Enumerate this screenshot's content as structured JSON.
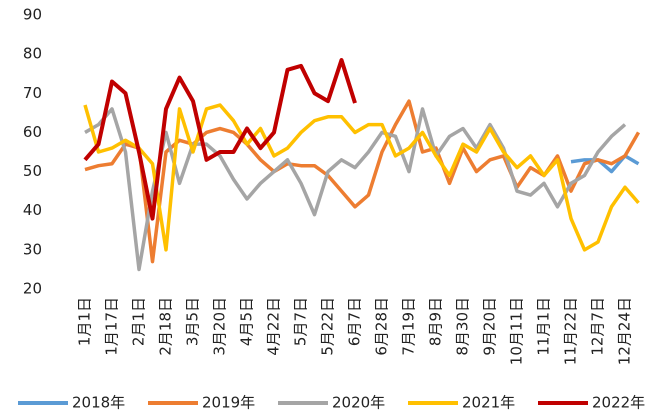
{
  "chart_data": {
    "type": "line",
    "categories": [
      "1月1日",
      null,
      "1月17日",
      null,
      "2月1日",
      null,
      "2月18日",
      null,
      "3月5日",
      null,
      "3月20日",
      null,
      "4月5日",
      null,
      "4月22日",
      null,
      "5月7日",
      null,
      "5月22日",
      null,
      "6月7日",
      null,
      "6月28日",
      null,
      "7月19日",
      null,
      "8月9日",
      null,
      "8月30日",
      null,
      "9月20日",
      null,
      "10月11日",
      null,
      "11月1日",
      null,
      "11月22日",
      null,
      "12月7日",
      null,
      "12月24日",
      null
    ],
    "series": [
      {
        "name": "2018年",
        "color": "#5b9bd5",
        "values": [
          null,
          null,
          null,
          null,
          null,
          null,
          null,
          null,
          null,
          null,
          null,
          null,
          null,
          null,
          null,
          null,
          null,
          null,
          null,
          null,
          null,
          null,
          null,
          null,
          null,
          null,
          null,
          null,
          null,
          null,
          null,
          null,
          null,
          null,
          null,
          null,
          52.5,
          53,
          53,
          50,
          54,
          52
        ]
      },
      {
        "name": "2019年",
        "color": "#ed7d31",
        "values": [
          50.5,
          51.5,
          52,
          57,
          56,
          27,
          55,
          58,
          57,
          60,
          61,
          60,
          57,
          53,
          50,
          52,
          51.5,
          51.5,
          49,
          45,
          41,
          44,
          55,
          62,
          68,
          55,
          56,
          47,
          56,
          50,
          53,
          54,
          46,
          51,
          49,
          54,
          45,
          52,
          53,
          52,
          54,
          60
        ]
      },
      {
        "name": "2020年",
        "color": "#a5a5a5",
        "values": [
          60,
          62,
          66,
          55,
          25,
          45,
          60,
          47,
          57,
          57,
          54,
          48,
          43,
          47,
          50,
          53,
          47,
          39,
          50,
          53,
          51,
          55,
          60,
          59,
          50,
          66,
          54,
          59,
          61,
          56,
          62,
          56,
          45,
          44,
          47,
          41,
          47,
          49,
          55,
          59,
          62,
          null
        ]
      },
      {
        "name": "2021年",
        "color": "#ffc000",
        "values": [
          67,
          55,
          56,
          58,
          56,
          52,
          30,
          66,
          55,
          66,
          67,
          63,
          57,
          61,
          54,
          56,
          60,
          63,
          64,
          64,
          60,
          62,
          62,
          54,
          56,
          60,
          54,
          49,
          57,
          55,
          61,
          55,
          51,
          54,
          49,
          53,
          38,
          30,
          32,
          41,
          46,
          42
        ]
      },
      {
        "name": "2022年",
        "color": "#c00000",
        "values": [
          53,
          57,
          73,
          70,
          55,
          38,
          66,
          74,
          68,
          53,
          55,
          55,
          61,
          56,
          60,
          76,
          77,
          70,
          68,
          78.5,
          67.5,
          null,
          null,
          null,
          null,
          null,
          null,
          null,
          null,
          null,
          null,
          null,
          null,
          null,
          null,
          null,
          null,
          null,
          null,
          null,
          null,
          null
        ]
      }
    ],
    "ylim": [
      20,
      90
    ],
    "yticks": [
      20,
      30,
      40,
      50,
      60,
      70,
      80,
      90
    ],
    "grid": false,
    "legend": "bottom"
  }
}
